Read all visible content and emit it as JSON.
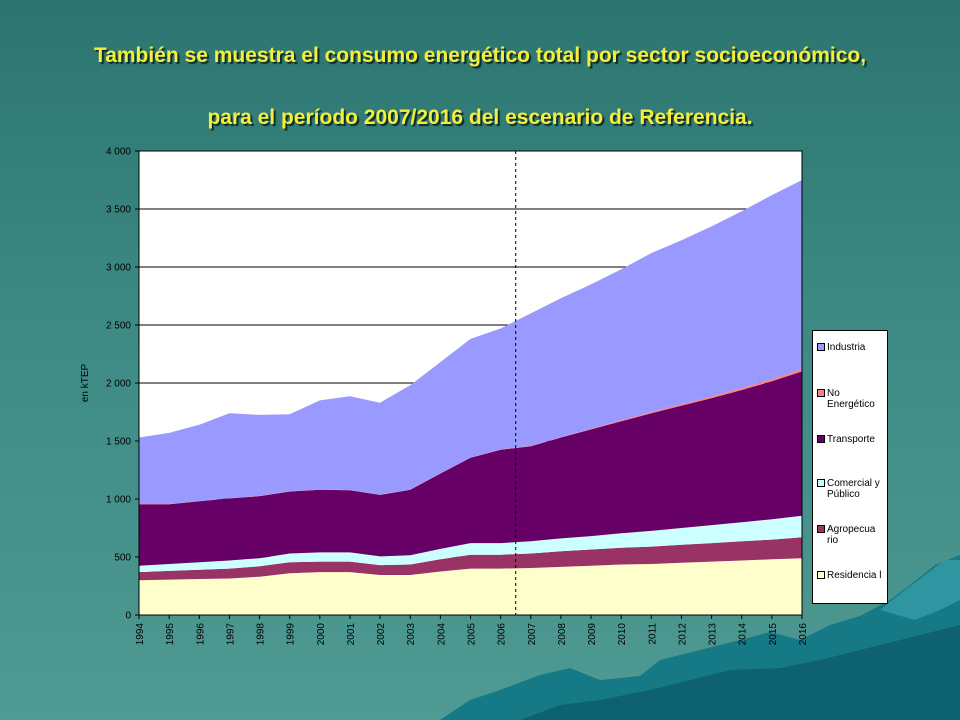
{
  "slide": {
    "title_line1": "También se muestra el consumo energético total por sector socioeconómico,",
    "title_line2": "para el período 2007/2016 del escenario de Referencia."
  },
  "colors": {
    "background": "#3d8a84",
    "title": "#f4ee3c",
    "Industria": "#9999ff",
    "No Energético": "#ff8080",
    "Transporte": "#660066",
    "Comercial y Público": "#ccffff",
    "Agropecuario": "#993366",
    "Residencial": "#ffffcc"
  },
  "chart_data": {
    "type": "area",
    "stacked": true,
    "ylabel": "en kTEP",
    "xlabel": "",
    "ylim": [
      0,
      4000
    ],
    "yticks": [
      "0",
      "500",
      "1 000",
      "1 500",
      "2 000",
      "2 500",
      "3 000",
      "3 500",
      "4 000"
    ],
    "ytick_values": [
      0,
      500,
      1000,
      1500,
      2000,
      2500,
      3000,
      3500,
      4000
    ],
    "x": [
      "1994",
      "1995",
      "1996",
      "1997",
      "1998",
      "1999",
      "2000",
      "2001",
      "2002",
      "2003",
      "2004",
      "2005",
      "2006",
      "2007",
      "2008",
      "2009",
      "2010",
      "2011",
      "2012",
      "2013",
      "2014",
      "2015",
      "2016"
    ],
    "divider_between": [
      "2006",
      "2007"
    ],
    "grid": "horizontal",
    "legend_position": "right",
    "series": [
      {
        "name": "Residencia l",
        "values": [
          300,
          305,
          310,
          315,
          330,
          360,
          370,
          370,
          345,
          345,
          375,
          400,
          400,
          405,
          415,
          425,
          435,
          440,
          450,
          460,
          470,
          480,
          490
        ]
      },
      {
        "name": "Agropecua rio",
        "values": [
          70,
          75,
          80,
          85,
          90,
          95,
          90,
          90,
          85,
          90,
          105,
          120,
          120,
          125,
          135,
          140,
          145,
          150,
          155,
          160,
          165,
          170,
          180
        ]
      },
      {
        "name": "Comercial y Público",
        "values": [
          55,
          60,
          65,
          70,
          70,
          75,
          80,
          80,
          75,
          80,
          90,
          100,
          100,
          105,
          110,
          115,
          125,
          135,
          145,
          155,
          165,
          175,
          185
        ]
      },
      {
        "name": "Transporte",
        "values": [
          530,
          515,
          525,
          535,
          535,
          535,
          540,
          535,
          530,
          565,
          650,
          735,
          805,
          820,
          870,
          920,
          965,
          1015,
          1055,
          1095,
          1140,
          1190,
          1245
        ]
      },
      {
        "name": "No Energético",
        "values": [
          2,
          2,
          2,
          2,
          2,
          2,
          2,
          2,
          2,
          2,
          2,
          3,
          3,
          3,
          4,
          6,
          8,
          10,
          12,
          14,
          16,
          18,
          20
        ]
      },
      {
        "name": "Industria",
        "values": [
          573,
          613,
          658,
          733,
          698,
          663,
          768,
          808,
          793,
          898,
          958,
          1022,
          1042,
          1142,
          1196,
          1244,
          1302,
          1370,
          1413,
          1466,
          1524,
          1587,
          1630
        ]
      }
    ]
  }
}
